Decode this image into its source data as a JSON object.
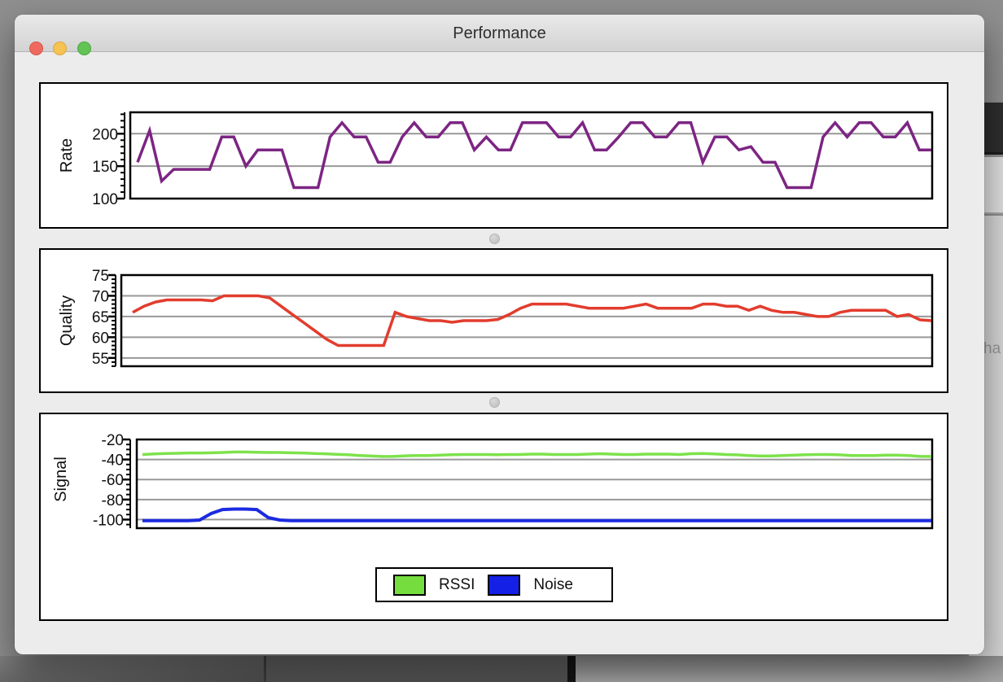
{
  "window": {
    "title": "Performance",
    "controls": {
      "close": "close",
      "minimize": "minimize",
      "zoom": "zoom"
    }
  },
  "background": {
    "partial_text_right": "ha"
  },
  "legend": {
    "items": [
      {
        "label": "RSSI",
        "color": "#76dd3e"
      },
      {
        "label": "Noise",
        "color": "#1420e6"
      }
    ]
  },
  "colors": {
    "rate_line": "#7c2583",
    "quality_line": "#e23c2d",
    "rssi_line": "#7de24b",
    "noise_line": "#1c2be0",
    "gridline": "#989898",
    "plot_border": "#000000"
  },
  "chart_data": [
    {
      "type": "line",
      "ylabel": "Rate",
      "tick_labels": [
        "100",
        "150",
        "200"
      ],
      "tick_values": [
        100,
        150,
        200
      ],
      "minor_tick_step": 10,
      "gridlines": [
        150,
        200
      ],
      "y_top": 233,
      "y_bottom": 100,
      "series": [
        {
          "name": "Rate",
          "color": "#7c2583",
          "width": 3.5,
          "values": [
            156,
            205,
            127,
            145,
            145,
            145,
            145,
            195,
            195,
            150,
            175,
            175,
            175,
            117,
            117,
            117,
            195,
            217,
            195,
            195,
            156,
            156,
            195,
            217,
            195,
            195,
            217,
            217,
            175,
            195,
            175,
            175,
            217,
            217,
            217,
            195,
            195,
            217,
            175,
            175,
            195,
            217,
            217,
            195,
            195,
            217,
            217,
            156,
            195,
            195,
            175,
            180,
            156,
            156,
            117,
            117,
            117,
            195,
            217,
            195,
            217,
            217,
            195,
            195,
            217,
            175,
            175
          ]
        }
      ]
    },
    {
      "type": "line",
      "ylabel": "Quality",
      "tick_labels": [
        "55",
        "60",
        "65",
        "70",
        "75"
      ],
      "tick_values": [
        55,
        60,
        65,
        70,
        75
      ],
      "minor_tick_step": 1,
      "gridlines": [
        55,
        60,
        65,
        70
      ],
      "y_top": 75,
      "y_bottom": 53,
      "series": [
        {
          "name": "Quality",
          "color": "#e23c2d",
          "width": 3.5,
          "values": [
            66,
            67.5,
            68.5,
            69,
            69,
            69,
            69,
            68.8,
            70,
            70,
            70,
            70,
            69.5,
            67.5,
            65.5,
            63.5,
            61.5,
            59.5,
            58,
            58,
            58,
            58,
            58,
            66,
            65,
            64.5,
            64,
            64,
            63.6,
            64,
            64,
            64,
            64.3,
            65.5,
            67,
            68,
            68,
            68,
            68,
            67.5,
            67,
            67,
            67,
            67,
            67.5,
            68,
            67,
            67,
            67,
            67,
            68,
            68,
            67.5,
            67.5,
            66.5,
            67.5,
            66.5,
            66,
            66,
            65.5,
            65,
            65,
            66,
            66.5,
            66.5,
            66.5,
            66.5,
            65,
            65.5,
            64.2,
            64
          ]
        }
      ]
    },
    {
      "type": "line",
      "ylabel": "Signal",
      "tick_labels": [
        "-100",
        "-80",
        "-60",
        "-40",
        "-20"
      ],
      "tick_values": [
        -100,
        -80,
        -60,
        -40,
        -20
      ],
      "minor_tick_step": 5,
      "gridlines": [
        -100,
        -80,
        -60,
        -40
      ],
      "y_top": -20,
      "y_bottom": -108.6,
      "series": [
        {
          "name": "RSSI",
          "color": "#7de24b",
          "width": 3.5,
          "values": [
            -35,
            -34.5,
            -34,
            -33.8,
            -33.5,
            -33.5,
            -33.3,
            -33,
            -32.5,
            -32.5,
            -32.8,
            -33,
            -33,
            -33.3,
            -33.5,
            -34,
            -34.3,
            -34.8,
            -35.3,
            -36,
            -36.5,
            -37,
            -36.8,
            -36.3,
            -36,
            -36,
            -35.6,
            -35.2,
            -35,
            -35,
            -35,
            -35.3,
            -35,
            -35,
            -34.6,
            -34.6,
            -35,
            -35,
            -35,
            -34.6,
            -34.2,
            -34.6,
            -35,
            -35,
            -34.6,
            -34.6,
            -34.6,
            -35,
            -34.2,
            -34,
            -34.4,
            -35,
            -35.4,
            -36,
            -36.4,
            -36.4,
            -36,
            -35.6,
            -35.2,
            -35,
            -35,
            -35.4,
            -36,
            -36,
            -36,
            -35.6,
            -35.6,
            -36,
            -36.8,
            -37
          ]
        },
        {
          "name": "Noise",
          "color": "#1c2be0",
          "width": 4,
          "values": [
            -101,
            -101,
            -101,
            -101,
            -101,
            -100.5,
            -94,
            -90,
            -89.5,
            -89.5,
            -90,
            -98,
            -100.5,
            -101,
            -101,
            -101,
            -101,
            -101,
            -101,
            -101,
            -101,
            -101,
            -101,
            -101,
            -101,
            -101,
            -101,
            -101,
            -101,
            -101,
            -101,
            -101,
            -101,
            -101,
            -101,
            -101,
            -101,
            -101,
            -101,
            -101,
            -101,
            -101,
            -101,
            -101,
            -101,
            -101,
            -101,
            -101,
            -101,
            -101,
            -101,
            -101,
            -101,
            -101,
            -101,
            -101,
            -101,
            -101,
            -101,
            -101,
            -101,
            -101,
            -101,
            -101,
            -101,
            -101,
            -101,
            -101,
            -101,
            -101
          ]
        }
      ]
    }
  ]
}
